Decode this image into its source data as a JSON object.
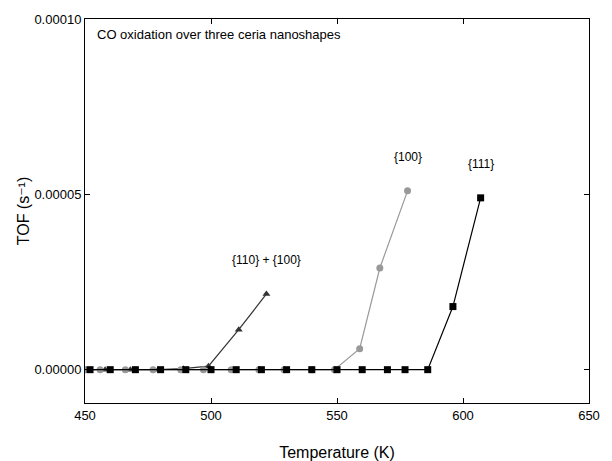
{
  "chart_data": {
    "type": "line",
    "title": "CO oxidation over three ceria nanoshapes",
    "x_label": "Temperature (K)",
    "y_label": "TOF (s⁻¹)",
    "xlim": [
      450,
      650
    ],
    "xticks": [
      450,
      500,
      550,
      600,
      650
    ],
    "ylim": [
      -9.5e-06,
      0.0001
    ],
    "yticks": [
      {
        "value": 0,
        "label": "0.00000"
      },
      {
        "value": 5e-05,
        "label": "0.00005"
      },
      {
        "value": 0.0001,
        "label": "0.00010"
      }
    ],
    "grid": false,
    "series": [
      {
        "name": "{110} + {100}",
        "color": "#333333",
        "marker": "triangle-up",
        "line_style": "solid",
        "x": [
          450,
          458,
          468,
          479,
          489,
          499,
          511,
          522
        ],
        "values": [
          0,
          0,
          0,
          0,
          3e-07,
          1e-06,
          1.14e-05,
          2.16e-05
        ]
      },
      {
        "name": "{100}",
        "color": "#999999",
        "marker": "circle",
        "line_style": "solid",
        "x": [
          450,
          456,
          466,
          477,
          488,
          497,
          508,
          519,
          529,
          540,
          549,
          559,
          567,
          578
        ],
        "values": [
          0,
          0,
          0,
          0,
          0,
          0,
          0,
          0,
          0,
          0,
          0,
          6e-06,
          2.9e-05,
          5.1e-05
        ]
      },
      {
        "name": "{111}",
        "color": "#000000",
        "marker": "square",
        "line_style": "solid",
        "x": [
          452,
          460,
          470,
          480,
          490,
          500,
          510,
          520,
          530,
          540,
          550,
          560,
          570,
          577,
          586,
          596,
          607
        ],
        "values": [
          0,
          0,
          0,
          0,
          0,
          0,
          0,
          0,
          0,
          0,
          0,
          0,
          0,
          0,
          0,
          1.8e-05,
          4.9e-05
        ]
      }
    ]
  }
}
